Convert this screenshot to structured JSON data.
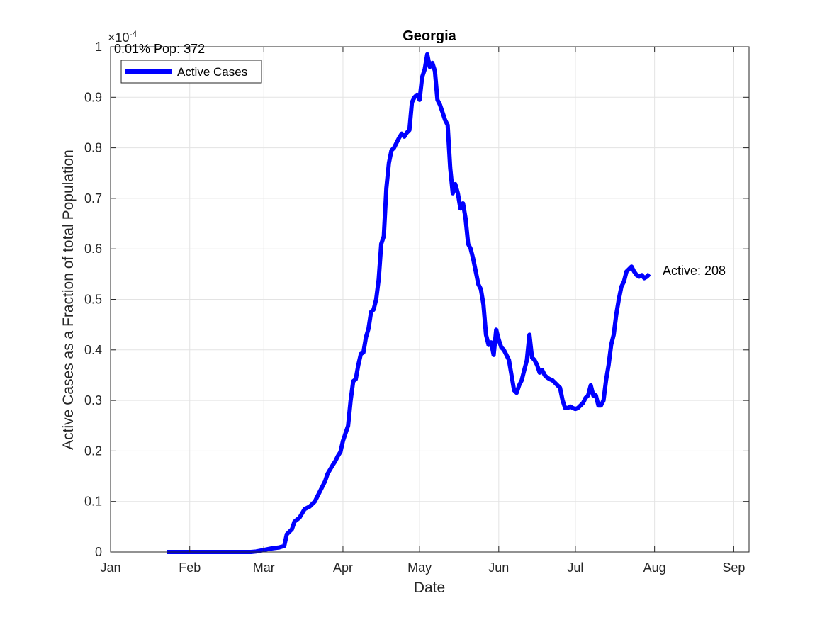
{
  "chart_data": {
    "type": "line",
    "title": "Georgia",
    "xlabel": "Date",
    "ylabel": "Active Cases as a Fraction of total Population",
    "y_exponent_label": "×10",
    "y_exponent_power": "-4",
    "y_scale_factor": 0.0001,
    "ylim": [
      0,
      1
    ],
    "xlim_day": [
      0,
      250
    ],
    "x_ticks": [
      {
        "label": "Jan",
        "day": 0
      },
      {
        "label": "Feb",
        "day": 31
      },
      {
        "label": "Mar",
        "day": 60
      },
      {
        "label": "Apr",
        "day": 91
      },
      {
        "label": "May",
        "day": 121
      },
      {
        "label": "Jun",
        "day": 152
      },
      {
        "label": "Jul",
        "day": 182
      },
      {
        "label": "Aug",
        "day": 213
      },
      {
        "label": "Sep",
        "day": 244
      }
    ],
    "y_ticks": [
      "0",
      "0.1",
      "0.2",
      "0.3",
      "0.4",
      "0.5",
      "0.6",
      "0.7",
      "0.8",
      "0.9",
      "1"
    ],
    "grid": true,
    "legend": {
      "position": "top-left",
      "entries": [
        "Active Cases"
      ]
    },
    "annotations": {
      "top_left": "0.01% Pop: 372",
      "end_label": "Active: 208"
    },
    "series": [
      {
        "name": "Active Cases",
        "color": "#0000ff",
        "points": [
          [
            22,
            0
          ],
          [
            40,
            0
          ],
          [
            55,
            0
          ],
          [
            57,
            0.001
          ],
          [
            59,
            0.003
          ],
          [
            61,
            0.005
          ],
          [
            63,
            0.007
          ],
          [
            66,
            0.009
          ],
          [
            68,
            0.012
          ],
          [
            69,
            0.035
          ],
          [
            71,
            0.045
          ],
          [
            72,
            0.06
          ],
          [
            74,
            0.068
          ],
          [
            76,
            0.085
          ],
          [
            78,
            0.09
          ],
          [
            80,
            0.1
          ],
          [
            82,
            0.12
          ],
          [
            84,
            0.14
          ],
          [
            85,
            0.155
          ],
          [
            87,
            0.172
          ],
          [
            88,
            0.18
          ],
          [
            89,
            0.19
          ],
          [
            90,
            0.198
          ],
          [
            91,
            0.22
          ],
          [
            92,
            0.235
          ],
          [
            93,
            0.25
          ],
          [
            94,
            0.3
          ],
          [
            95,
            0.338
          ],
          [
            96,
            0.342
          ],
          [
            97,
            0.37
          ],
          [
            98,
            0.392
          ],
          [
            99,
            0.395
          ],
          [
            100,
            0.425
          ],
          [
            101,
            0.442
          ],
          [
            102,
            0.475
          ],
          [
            103,
            0.48
          ],
          [
            104,
            0.5
          ],
          [
            105,
            0.54
          ],
          [
            106,
            0.61
          ],
          [
            107,
            0.625
          ],
          [
            108,
            0.72
          ],
          [
            109,
            0.77
          ],
          [
            110,
            0.795
          ],
          [
            111,
            0.8
          ],
          [
            112,
            0.81
          ],
          [
            113,
            0.82
          ],
          [
            114,
            0.828
          ],
          [
            115,
            0.822
          ],
          [
            116,
            0.83
          ],
          [
            117,
            0.835
          ],
          [
            118,
            0.89
          ],
          [
            119,
            0.9
          ],
          [
            120,
            0.905
          ],
          [
            121,
            0.895
          ],
          [
            122,
            0.94
          ],
          [
            123,
            0.955
          ],
          [
            124,
            0.985
          ],
          [
            125,
            0.96
          ],
          [
            126,
            0.968
          ],
          [
            127,
            0.952
          ],
          [
            128,
            0.895
          ],
          [
            129,
            0.885
          ],
          [
            130,
            0.87
          ],
          [
            131,
            0.855
          ],
          [
            132,
            0.845
          ],
          [
            133,
            0.76
          ],
          [
            134,
            0.71
          ],
          [
            135,
            0.728
          ],
          [
            136,
            0.71
          ],
          [
            137,
            0.68
          ],
          [
            138,
            0.69
          ],
          [
            139,
            0.66
          ],
          [
            140,
            0.61
          ],
          [
            141,
            0.6
          ],
          [
            142,
            0.58
          ],
          [
            143,
            0.555
          ],
          [
            144,
            0.53
          ],
          [
            145,
            0.52
          ],
          [
            146,
            0.49
          ],
          [
            147,
            0.43
          ],
          [
            148,
            0.41
          ],
          [
            149,
            0.415
          ],
          [
            150,
            0.39
          ],
          [
            151,
            0.44
          ],
          [
            152,
            0.42
          ],
          [
            153,
            0.405
          ],
          [
            154,
            0.4
          ],
          [
            155,
            0.39
          ],
          [
            156,
            0.38
          ],
          [
            157,
            0.35
          ],
          [
            158,
            0.32
          ],
          [
            159,
            0.315
          ],
          [
            160,
            0.33
          ],
          [
            161,
            0.34
          ],
          [
            162,
            0.36
          ],
          [
            163,
            0.38
          ],
          [
            164,
            0.43
          ],
          [
            165,
            0.385
          ],
          [
            166,
            0.38
          ],
          [
            167,
            0.37
          ],
          [
            168,
            0.355
          ],
          [
            169,
            0.36
          ],
          [
            170,
            0.35
          ],
          [
            171,
            0.345
          ],
          [
            172,
            0.342
          ],
          [
            173,
            0.34
          ],
          [
            174,
            0.335
          ],
          [
            175,
            0.33
          ],
          [
            176,
            0.325
          ],
          [
            177,
            0.3
          ],
          [
            178,
            0.285
          ],
          [
            179,
            0.285
          ],
          [
            180,
            0.288
          ],
          [
            181,
            0.285
          ],
          [
            182,
            0.283
          ],
          [
            183,
            0.285
          ],
          [
            184,
            0.29
          ],
          [
            185,
            0.295
          ],
          [
            186,
            0.305
          ],
          [
            187,
            0.31
          ],
          [
            188,
            0.33
          ],
          [
            189,
            0.31
          ],
          [
            190,
            0.31
          ],
          [
            191,
            0.29
          ],
          [
            192,
            0.29
          ],
          [
            193,
            0.3
          ],
          [
            194,
            0.34
          ],
          [
            195,
            0.37
          ],
          [
            196,
            0.41
          ],
          [
            197,
            0.43
          ],
          [
            198,
            0.47
          ],
          [
            199,
            0.5
          ],
          [
            200,
            0.525
          ],
          [
            201,
            0.535
          ],
          [
            202,
            0.555
          ],
          [
            203,
            0.56
          ],
          [
            204,
            0.565
          ],
          [
            205,
            0.555
          ],
          [
            206,
            0.548
          ],
          [
            207,
            0.545
          ],
          [
            208,
            0.548
          ],
          [
            209,
            0.542
          ],
          [
            210,
            0.545
          ],
          [
            211,
            0.55
          ]
        ]
      }
    ]
  }
}
